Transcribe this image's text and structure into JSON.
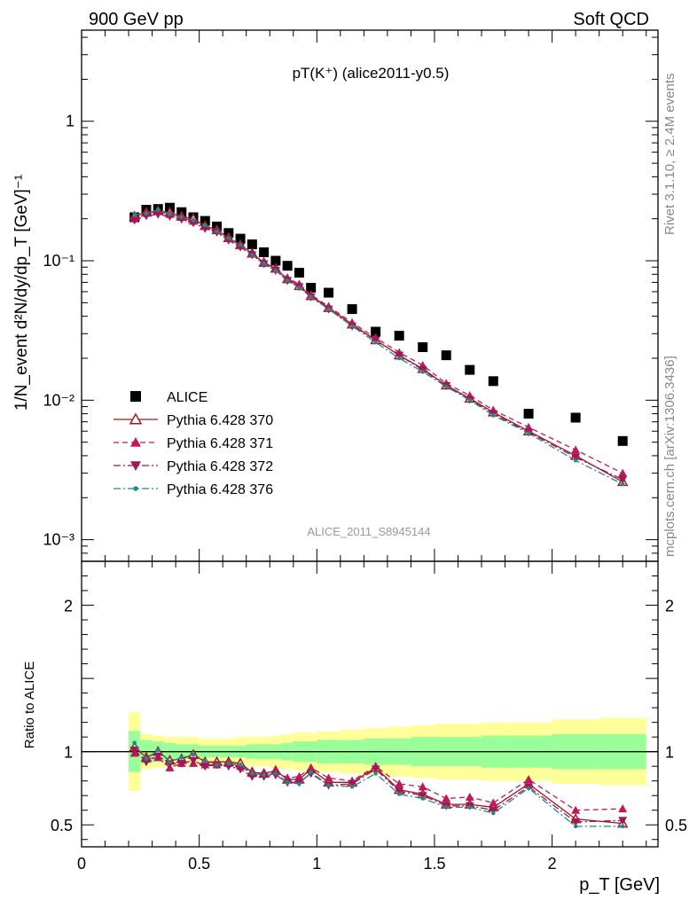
{
  "header": {
    "left": "900 GeV pp",
    "right": "Soft QCD",
    "right_vertical_top": "Rivet 3.1.10, ≥ 2.4M events",
    "right_vertical_bottom": "mcplots.cern.ch [arXiv:1306.3436]",
    "watermark": "ALICE_2011_S8945144"
  },
  "chart_data": [
    {
      "type": "scatter",
      "title": "pT(K⁺) (alice2011-y0.5)",
      "ylabel": "1/N_event d²N/dy/dp_T [GeV]⁻¹",
      "xlim": [
        0,
        2.45
      ],
      "ylim": [
        0.0007,
        4.5
      ],
      "yscale": "log",
      "yticks": [
        {
          "v": 0.001,
          "label": "10⁻³"
        },
        {
          "v": 0.01,
          "label": "10⁻²"
        },
        {
          "v": 0.1,
          "label": "10⁻¹"
        },
        {
          "v": 1,
          "label": "1"
        }
      ],
      "x": [
        0.225,
        0.275,
        0.325,
        0.375,
        0.425,
        0.475,
        0.525,
        0.575,
        0.625,
        0.675,
        0.725,
        0.775,
        0.825,
        0.875,
        0.925,
        0.975,
        1.05,
        1.15,
        1.25,
        1.35,
        1.45,
        1.55,
        1.65,
        1.75,
        1.9,
        2.1,
        2.3
      ],
      "series": [
        {
          "name": "ALICE",
          "color": "#000000",
          "marker": "square",
          "line": "none",
          "values": [
            0.205,
            0.232,
            0.235,
            0.24,
            0.223,
            0.205,
            0.193,
            0.176,
            0.158,
            0.144,
            0.131,
            0.115,
            0.1,
            0.092,
            0.082,
            0.064,
            0.059,
            0.045,
            0.031,
            0.029,
            0.024,
            0.021,
            0.0165,
            0.0137,
            0.008,
            0.0075,
            0.0051
          ]
        },
        {
          "name": "Pythia 6.428 370",
          "color": "#a01820",
          "marker": "triangle-open",
          "line": "solid",
          "values": [
            0.208,
            0.222,
            0.228,
            0.222,
            0.208,
            0.2,
            0.178,
            0.166,
            0.146,
            0.13,
            0.113,
            0.097,
            0.088,
            0.074,
            0.066,
            0.056,
            0.046,
            0.035,
            0.027,
            0.021,
            0.0168,
            0.0128,
            0.0103,
            0.0082,
            0.006,
            0.004,
            0.0026
          ]
        },
        {
          "name": "Pythia 6.428 371",
          "color": "#c01858",
          "marker": "triangle-up",
          "line": "dashed",
          "values": [
            0.2,
            0.22,
            0.225,
            0.215,
            0.205,
            0.192,
            0.176,
            0.165,
            0.145,
            0.128,
            0.112,
            0.098,
            0.087,
            0.075,
            0.068,
            0.057,
            0.047,
            0.036,
            0.028,
            0.022,
            0.0178,
            0.0132,
            0.0108,
            0.0085,
            0.0064,
            0.0044,
            0.003
          ]
        },
        {
          "name": "Pythia 6.428 372",
          "color": "#a01858",
          "marker": "triangle-down",
          "line": "dashdot",
          "values": [
            0.195,
            0.21,
            0.215,
            0.208,
            0.198,
            0.187,
            0.17,
            0.16,
            0.14,
            0.125,
            0.11,
            0.095,
            0.085,
            0.072,
            0.065,
            0.055,
            0.045,
            0.034,
            0.027,
            0.021,
            0.0165,
            0.0127,
            0.0101,
            0.008,
            0.0059,
            0.0039,
            0.0027
          ]
        },
        {
          "name": "Pythia 6.428 376",
          "color": "#208a88",
          "marker": "star",
          "line": "dashdot",
          "values": [
            0.215,
            0.218,
            0.232,
            0.215,
            0.205,
            0.195,
            0.18,
            0.162,
            0.145,
            0.13,
            0.11,
            0.095,
            0.085,
            0.072,
            0.064,
            0.055,
            0.045,
            0.034,
            0.026,
            0.02,
            0.016,
            0.0125,
            0.01,
            0.0078,
            0.0058,
            0.0037,
            0.0025
          ]
        }
      ]
    },
    {
      "type": "line",
      "ylabel": "Ratio to ALICE",
      "xlabel": "p_T [GeV]",
      "xlim": [
        0,
        2.45
      ],
      "ylim": [
        0.35,
        2.3
      ],
      "xticks": [
        {
          "v": 0,
          "label": "0"
        },
        {
          "v": 0.5,
          "label": "0.5"
        },
        {
          "v": 1,
          "label": "1"
        },
        {
          "v": 1.5,
          "label": "1.5"
        },
        {
          "v": 2,
          "label": "2"
        }
      ],
      "yticks": [
        {
          "v": 0.5,
          "label": "0.5"
        },
        {
          "v": 1,
          "label": "1"
        },
        {
          "v": 2,
          "label": "2"
        }
      ],
      "bins": [
        0.2,
        0.25,
        0.3,
        0.35,
        0.4,
        0.45,
        0.5,
        0.55,
        0.6,
        0.65,
        0.7,
        0.75,
        0.8,
        0.85,
        0.9,
        0.95,
        1.0,
        1.1,
        1.2,
        1.3,
        1.4,
        1.5,
        1.6,
        1.7,
        1.8,
        2.0,
        2.2,
        2.4
      ],
      "band_yellow": [
        0.27,
        0.12,
        0.11,
        0.1,
        0.1,
        0.1,
        0.09,
        0.09,
        0.09,
        0.1,
        0.1,
        0.1,
        0.11,
        0.12,
        0.13,
        0.13,
        0.14,
        0.15,
        0.16,
        0.17,
        0.18,
        0.19,
        0.19,
        0.2,
        0.2,
        0.22,
        0.23
      ],
      "band_green": [
        0.14,
        0.08,
        0.07,
        0.06,
        0.05,
        0.05,
        0.04,
        0.04,
        0.04,
        0.04,
        0.05,
        0.05,
        0.05,
        0.06,
        0.07,
        0.07,
        0.08,
        0.08,
        0.09,
        0.09,
        0.1,
        0.1,
        0.1,
        0.11,
        0.11,
        0.12,
        0.12
      ],
      "x": [
        0.225,
        0.275,
        0.325,
        0.375,
        0.425,
        0.475,
        0.525,
        0.575,
        0.625,
        0.675,
        0.725,
        0.775,
        0.825,
        0.875,
        0.925,
        0.975,
        1.05,
        1.15,
        1.25,
        1.35,
        1.45,
        1.55,
        1.65,
        1.75,
        1.9,
        2.1,
        2.3
      ],
      "series": [
        {
          "name": "Pythia 6.428 370",
          "color": "#a01820",
          "marker": "triangle-open",
          "line": "solid",
          "values": [
            1.03,
            0.96,
            1.0,
            0.94,
            0.95,
            0.98,
            0.93,
            0.93,
            0.93,
            0.92,
            0.86,
            0.85,
            0.87,
            0.81,
            0.81,
            0.88,
            0.79,
            0.79,
            0.89,
            0.74,
            0.71,
            0.64,
            0.64,
            0.62,
            0.78,
            0.54,
            0.51
          ]
        },
        {
          "name": "Pythia 6.428 371",
          "color": "#c01858",
          "marker": "triangle-up",
          "line": "dashed",
          "values": [
            0.99,
            0.95,
            0.96,
            0.89,
            0.92,
            0.92,
            0.91,
            0.91,
            0.92,
            0.9,
            0.85,
            0.85,
            0.87,
            0.82,
            0.83,
            0.89,
            0.82,
            0.8,
            0.9,
            0.78,
            0.76,
            0.68,
            0.69,
            0.65,
            0.81,
            0.6,
            0.61
          ]
        },
        {
          "name": "Pythia 6.428 372",
          "color": "#a01858",
          "marker": "triangle-down",
          "line": "dashdot",
          "values": [
            1.01,
            0.93,
            0.97,
            0.92,
            0.92,
            0.94,
            0.9,
            0.91,
            0.9,
            0.88,
            0.83,
            0.83,
            0.84,
            0.79,
            0.79,
            0.85,
            0.77,
            0.78,
            0.88,
            0.73,
            0.7,
            0.63,
            0.63,
            0.6,
            0.76,
            0.52,
            0.53
          ]
        },
        {
          "name": "Pythia 6.428 376",
          "color": "#208a88",
          "marker": "star",
          "line": "dashdot",
          "values": [
            1.06,
            0.95,
            1.01,
            0.93,
            0.96,
            0.98,
            0.94,
            0.91,
            0.92,
            0.91,
            0.85,
            0.84,
            0.85,
            0.79,
            0.78,
            0.86,
            0.77,
            0.76,
            0.85,
            0.71,
            0.68,
            0.62,
            0.62,
            0.58,
            0.75,
            0.49,
            0.49
          ]
        }
      ]
    }
  ]
}
